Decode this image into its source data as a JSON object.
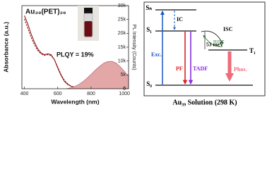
{
  "chart_data": {
    "type": "spectrum",
    "title": "Au₃₉(PET)₂₉",
    "annotation": "PLQY = 19%",
    "x_label": "Wavelength (nm)",
    "y_label": "Absorbance (a.u.)",
    "y2_label": "PL Intensity (Counts)",
    "xlim": [
      385,
      1025
    ],
    "xticks": [
      400,
      600,
      800,
      1000
    ],
    "ylim": [
      0,
      1
    ],
    "y2lim": [
      0,
      30000
    ],
    "y2ticks": [
      0,
      {
        "value": 5000,
        "label": "5k"
      },
      {
        "value": 10000,
        "label": "10k"
      },
      {
        "value": 15000,
        "label": "15k"
      },
      {
        "value": 20000,
        "label": "20k"
      },
      {
        "value": 25000,
        "label": "25k"
      },
      {
        "value": 30000,
        "label": "30k"
      }
    ],
    "series": [
      {
        "color": "#8b1a1a",
        "style": "solid",
        "x": [
          400,
          420,
          440,
          460,
          480,
          500,
          520,
          540,
          560,
          580,
          600,
          620,
          640,
          660,
          680,
          700
        ],
        "values": [
          0.88,
          0.78,
          0.66,
          0.56,
          0.48,
          0.43,
          0.41,
          0.42,
          0.41,
          0.35,
          0.25,
          0.16,
          0.09,
          0.05,
          0.03,
          0.02
        ]
      },
      {
        "color": "#8b1a1a",
        "style": "dashed",
        "x": [
          400,
          420,
          440,
          460,
          480,
          500,
          520,
          540,
          560,
          580,
          600,
          620,
          640,
          660,
          680,
          700
        ],
        "values": [
          0.84,
          0.73,
          0.62,
          0.53,
          0.46,
          0.42,
          0.4,
          0.41,
          0.4,
          0.35,
          0.26,
          0.17,
          0.1,
          0.06,
          0.03,
          0.02
        ]
      },
      {
        "color": "#d9898b",
        "style": "area",
        "axis": "y2",
        "x": [
          650,
          675,
          700,
          725,
          750,
          775,
          800,
          825,
          850,
          875,
          900,
          925,
          950,
          975,
          1000,
          1025
        ],
        "values": [
          0,
          300,
          800,
          1500,
          2500,
          3800,
          5200,
          6700,
          8000,
          9200,
          9800,
          9900,
          9300,
          8000,
          6300,
          4500
        ]
      }
    ]
  },
  "diagram": {
    "s_n": "Sₙ",
    "s_1": "S₁",
    "s_0": "S₀",
    "t_1": "T₁",
    "ic": "IC",
    "isc": "ISC",
    "risc": "RISC",
    "gap": "53 meV",
    "exc": "Exc.",
    "pf": "PF",
    "tadf": "TADF",
    "phos": "Phos.",
    "caption": "Au₃₉ Solution (298 K)"
  }
}
